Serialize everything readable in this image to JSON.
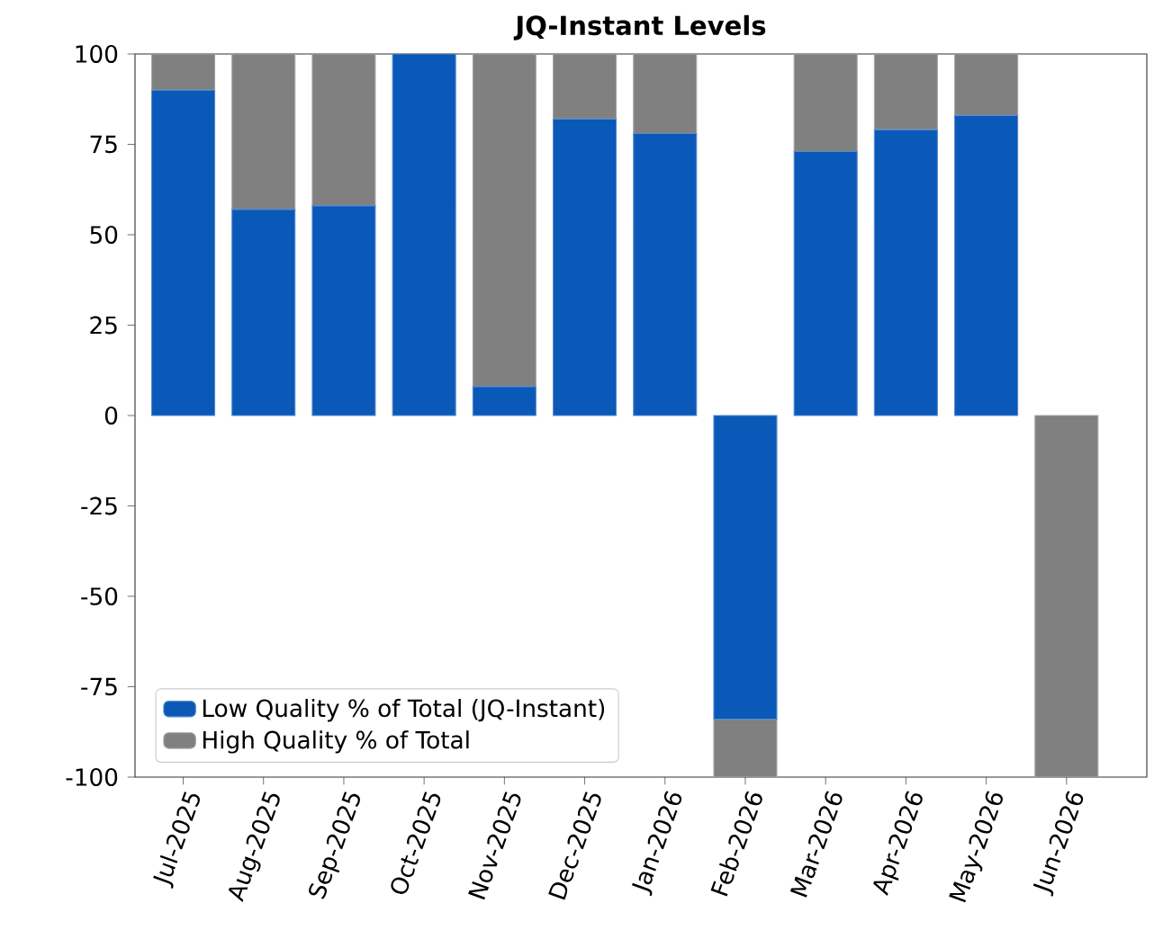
{
  "chart_data": {
    "type": "bar",
    "title": "JQ-Instant Levels",
    "stacked": true,
    "categories": [
      "Jul-2025",
      "Aug-2025",
      "Sep-2025",
      "Oct-2025",
      "Nov-2025",
      "Dec-2025",
      "Jan-2026",
      "Feb-2026",
      "Mar-2026",
      "Apr-2026",
      "May-2026",
      "Jun-2026"
    ],
    "series": [
      {
        "name": "Low Quality % of Total (JQ-Instant)",
        "color": "#0a58b8",
        "values": [
          90,
          57,
          58,
          100,
          8,
          82,
          78,
          -84,
          73,
          79,
          83,
          0
        ]
      },
      {
        "name": "High Quality % of Total",
        "color": "#808080",
        "values": [
          10,
          43,
          42,
          0,
          92,
          18,
          22,
          -16,
          27,
          21,
          17,
          -100
        ]
      }
    ],
    "ylim": [
      -100,
      100
    ],
    "yticks": [
      -100,
      -75,
      -50,
      -25,
      0,
      25,
      50,
      75,
      100
    ],
    "grid": false,
    "legend": "bottom left"
  }
}
